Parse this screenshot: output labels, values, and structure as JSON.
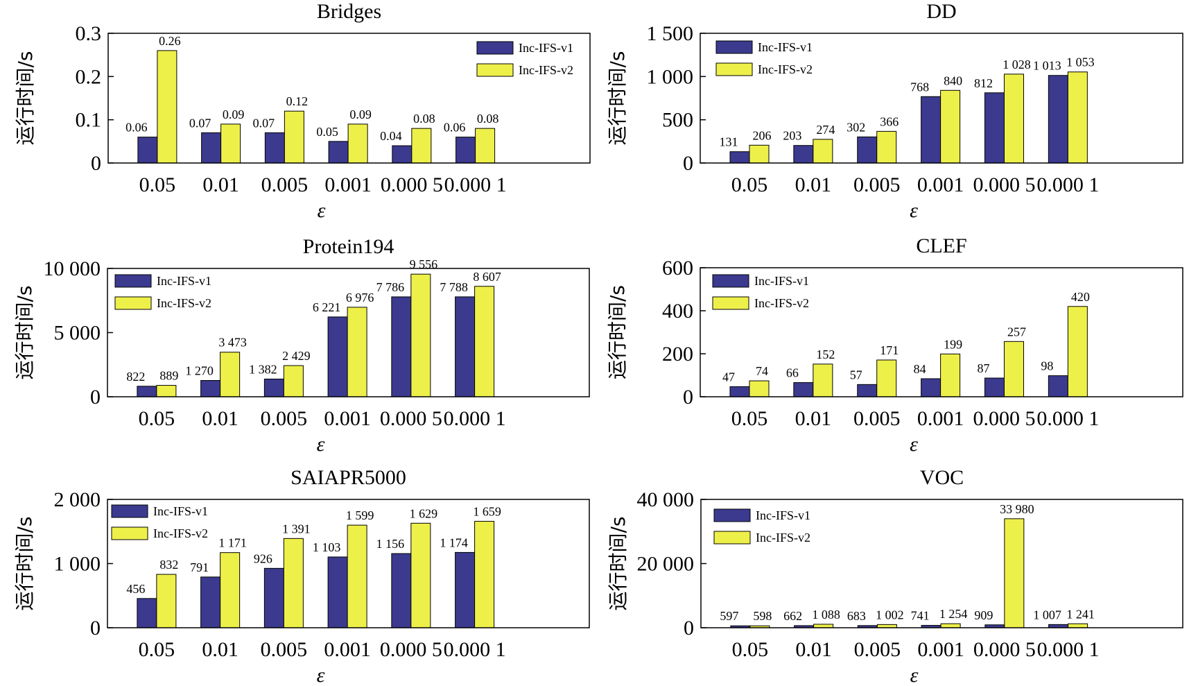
{
  "colors": {
    "v1": "#3b3a8f",
    "v2": "#eef04a",
    "stroke": "#000000"
  },
  "chart_data": [
    {
      "type": "bar",
      "title": "Bridges",
      "xlabel": "ε",
      "ylabel": "运行时间/s",
      "categories": [
        "0.05",
        "0.01",
        "0.005",
        "0.001",
        "0.000 5",
        "0.000 1"
      ],
      "ylim": [
        0,
        0.3
      ],
      "yticks": [
        0,
        0.1,
        0.2,
        0.3
      ],
      "ytick_labels": [
        "0",
        "0.1",
        "0.2",
        "0.3"
      ],
      "legend_position": "top-right",
      "series": [
        {
          "name": "Inc-IFS-v1",
          "values": [
            0.06,
            0.07,
            0.07,
            0.05,
            0.04,
            0.06
          ],
          "labels": [
            "0.06",
            "0.07",
            "0.07",
            "0.05",
            "0.04",
            "0.06"
          ]
        },
        {
          "name": "Inc-IFS-v2",
          "values": [
            0.26,
            0.09,
            0.12,
            0.09,
            0.08,
            0.08
          ],
          "labels": [
            "0.26",
            "0.09",
            "0.12",
            "0.09",
            "0.08",
            "0.08"
          ]
        }
      ]
    },
    {
      "type": "bar",
      "title": "DD",
      "xlabel": "ε",
      "ylabel": "运行时间/s",
      "categories": [
        "0.05",
        "0.01",
        "0.005",
        "0.001",
        "0.000 5",
        "0.000 1"
      ],
      "ylim": [
        0,
        1500
      ],
      "yticks": [
        0,
        500,
        1000,
        1500
      ],
      "ytick_labels": [
        "0",
        "500",
        "1 000",
        "1 500"
      ],
      "legend_position": "top-left",
      "series": [
        {
          "name": "Inc-IFS-v1",
          "values": [
            131,
            203,
            302,
            768,
            812,
            1013
          ],
          "labels": [
            "131",
            "203",
            "302",
            "768",
            "812",
            "1 013"
          ]
        },
        {
          "name": "Inc-IFS-v2",
          "values": [
            206,
            274,
            366,
            840,
            1028,
            1053
          ],
          "labels": [
            "206",
            "274",
            "366",
            "840",
            "1 028",
            "1 053"
          ]
        }
      ]
    },
    {
      "type": "bar",
      "title": "Protein194",
      "xlabel": "ε",
      "ylabel": "运行时间/s",
      "categories": [
        "0.05",
        "0.01",
        "0.005",
        "0.001",
        "0.000 5",
        "0.000 1"
      ],
      "ylim": [
        0,
        10000
      ],
      "yticks": [
        0,
        5000,
        10000
      ],
      "ytick_labels": [
        "0",
        "5 000",
        "10 000"
      ],
      "legend_position": "top-left",
      "series": [
        {
          "name": "Inc-IFS-v1",
          "values": [
            822,
            1270,
            1382,
            6221,
            7786,
            7788
          ],
          "labels": [
            "822",
            "1 270",
            "1 382",
            "6 221",
            "7 786",
            "7 788"
          ]
        },
        {
          "name": "Inc-IFS-v2",
          "values": [
            889,
            3473,
            2429,
            6976,
            9556,
            8607
          ],
          "labels": [
            "889",
            "3 473",
            "2 429",
            "6 976",
            "9 556",
            "8 607"
          ]
        }
      ]
    },
    {
      "type": "bar",
      "title": "CLEF",
      "xlabel": "ε",
      "ylabel": "运行时间/s",
      "categories": [
        "0.05",
        "0.01",
        "0.005",
        "0.001",
        "0.000 5",
        "0.000 1"
      ],
      "ylim": [
        0,
        600
      ],
      "yticks": [
        0,
        200,
        400,
        600
      ],
      "ytick_labels": [
        "0",
        "200",
        "400",
        "600"
      ],
      "legend_position": "top-left",
      "series": [
        {
          "name": "Inc-IFS-v1",
          "values": [
            47,
            66,
            57,
            84,
            87,
            98
          ],
          "labels": [
            "47",
            "66",
            "57",
            "84",
            "87",
            "98"
          ]
        },
        {
          "name": "Inc-IFS-v2",
          "values": [
            74,
            152,
            171,
            199,
            257,
            420
          ],
          "labels": [
            "74",
            "152",
            "171",
            "199",
            "257",
            "420"
          ]
        }
      ]
    },
    {
      "type": "bar",
      "title": "SAIAPR5000",
      "xlabel": "ε",
      "ylabel": "运行时间/s",
      "categories": [
        "0.05",
        "0.01",
        "0.005",
        "0.001",
        "0.000 5",
        "0.000 1"
      ],
      "ylim": [
        0,
        2000
      ],
      "yticks": [
        0,
        1000,
        2000
      ],
      "ytick_labels": [
        "0",
        "1 000",
        "2 000"
      ],
      "legend_position": "top-left",
      "series": [
        {
          "name": "Inc-IFS-v1",
          "values": [
            456,
            791,
            926,
            1103,
            1156,
            1174
          ],
          "labels": [
            "456",
            "791",
            "926",
            "1 103",
            "1 156",
            "1 174"
          ]
        },
        {
          "name": "Inc-IFS-v2",
          "values": [
            832,
            1171,
            1391,
            1599,
            1629,
            1659
          ],
          "labels": [
            "832",
            "1 171",
            "1 391",
            "1 599",
            "1 629",
            "1 659"
          ]
        }
      ]
    },
    {
      "type": "bar",
      "title": "VOC",
      "xlabel": "ε",
      "ylabel": "运行时间/s",
      "categories": [
        "0.05",
        "0.01",
        "0.005",
        "0.001",
        "0.000 5",
        "0.000 1"
      ],
      "ylim": [
        0,
        40000
      ],
      "yticks": [
        0,
        20000,
        40000
      ],
      "ytick_labels": [
        "0",
        "20 000",
        "40 000"
      ],
      "legend_position": "top-left",
      "series": [
        {
          "name": "Inc-IFS-v1",
          "values": [
            597,
            662,
            683,
            741,
            909,
            1007
          ],
          "labels": [
            "597",
            "662",
            "683",
            "741",
            "909",
            "1 007"
          ]
        },
        {
          "name": "Inc-IFS-v2",
          "values": [
            598,
            1088,
            1002,
            1254,
            33980,
            1241
          ],
          "labels": [
            "598",
            "1 088",
            "1 002",
            "1 254",
            "33 980",
            "1 241"
          ]
        }
      ]
    }
  ]
}
